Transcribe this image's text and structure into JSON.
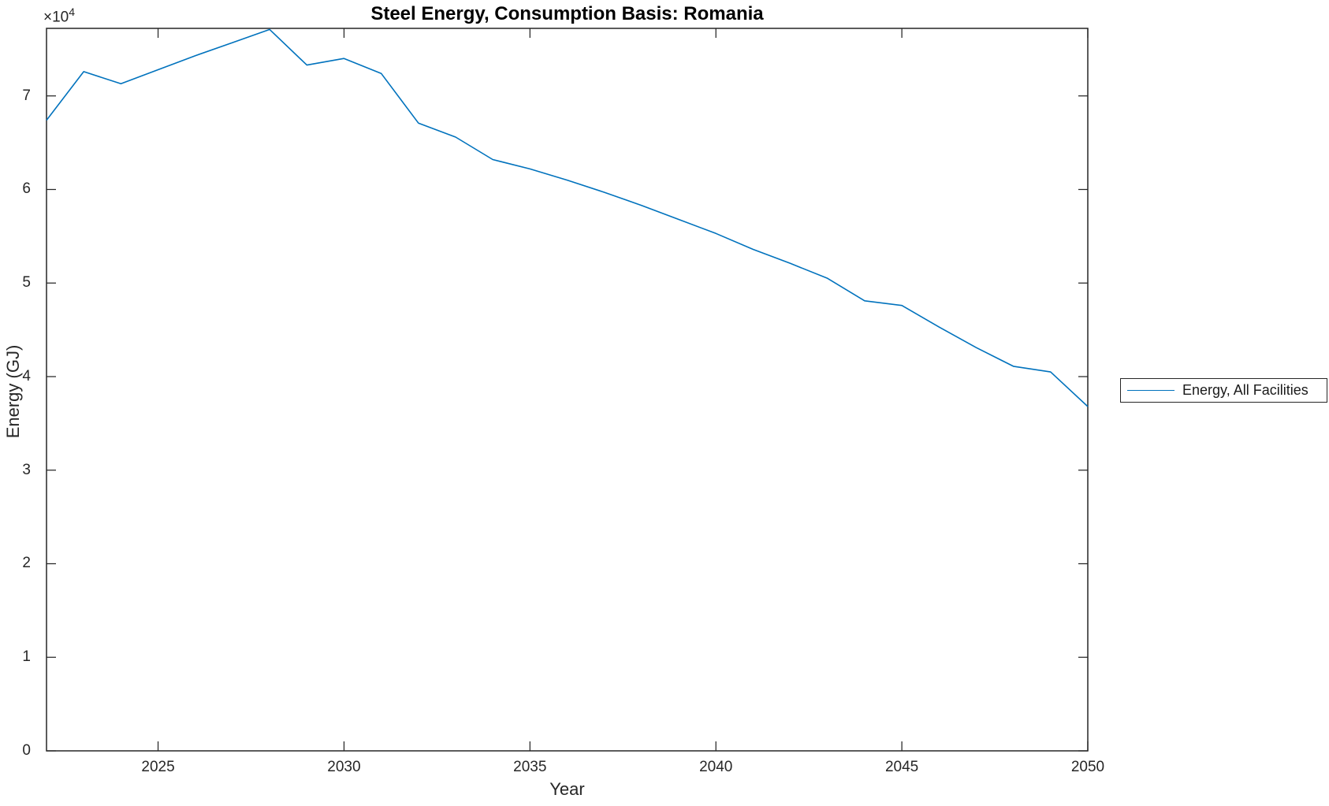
{
  "figure": {
    "title": "Steel Energy, Consumption Basis: Romania",
    "background_color": "#ffffff"
  },
  "axes": {
    "xlabel": "Year",
    "ylabel": "Energy (GJ)",
    "y_scale_base": "×10",
    "y_scale_exponent": "4",
    "x_tick_labels": [
      "2025",
      "2030",
      "2035",
      "2040",
      "2045",
      "2050"
    ],
    "y_tick_labels": [
      "0",
      "1",
      "2",
      "3",
      "4",
      "5",
      "6",
      "7"
    ],
    "axis_color": "#262626",
    "tick_text_color": "#262626"
  },
  "legend": {
    "entries": [
      {
        "label": "Energy, All Facilities",
        "line_color": "#0072BD"
      }
    ]
  },
  "chart_data": {
    "type": "line",
    "title": "Steel Energy, Consumption Basis: Romania",
    "xlabel": "Year",
    "ylabel": "Energy (GJ)",
    "x": [
      2022,
      2023,
      2024,
      2025,
      2026,
      2027,
      2028,
      2029,
      2030,
      2031,
      2032,
      2033,
      2034,
      2035,
      2036,
      2037,
      2038,
      2039,
      2040,
      2041,
      2042,
      2043,
      2044,
      2045,
      2046,
      2047,
      2048,
      2049,
      2050
    ],
    "series": [
      {
        "name": "Energy, All Facilities",
        "color": "#0072BD",
        "values": [
          67400,
          72600,
          71300,
          72800,
          74300,
          75700,
          77100,
          73300,
          74000,
          72400,
          67100,
          65600,
          63200,
          62200,
          61000,
          59700,
          58300,
          56800,
          55300,
          53600,
          52100,
          50500,
          48100,
          47600,
          45300,
          43100,
          41100,
          40500,
          36800
        ]
      }
    ],
    "xlim": [
      2022,
      2050
    ],
    "ylim": [
      0,
      77220
    ],
    "x_ticks": [
      2025,
      2030,
      2035,
      2040,
      2045,
      2050
    ],
    "y_ticks": [
      0,
      10000,
      20000,
      30000,
      40000,
      50000,
      60000,
      70000
    ],
    "grid": false,
    "legend_position": "outside-right",
    "box": true,
    "tick_direction": "in"
  }
}
